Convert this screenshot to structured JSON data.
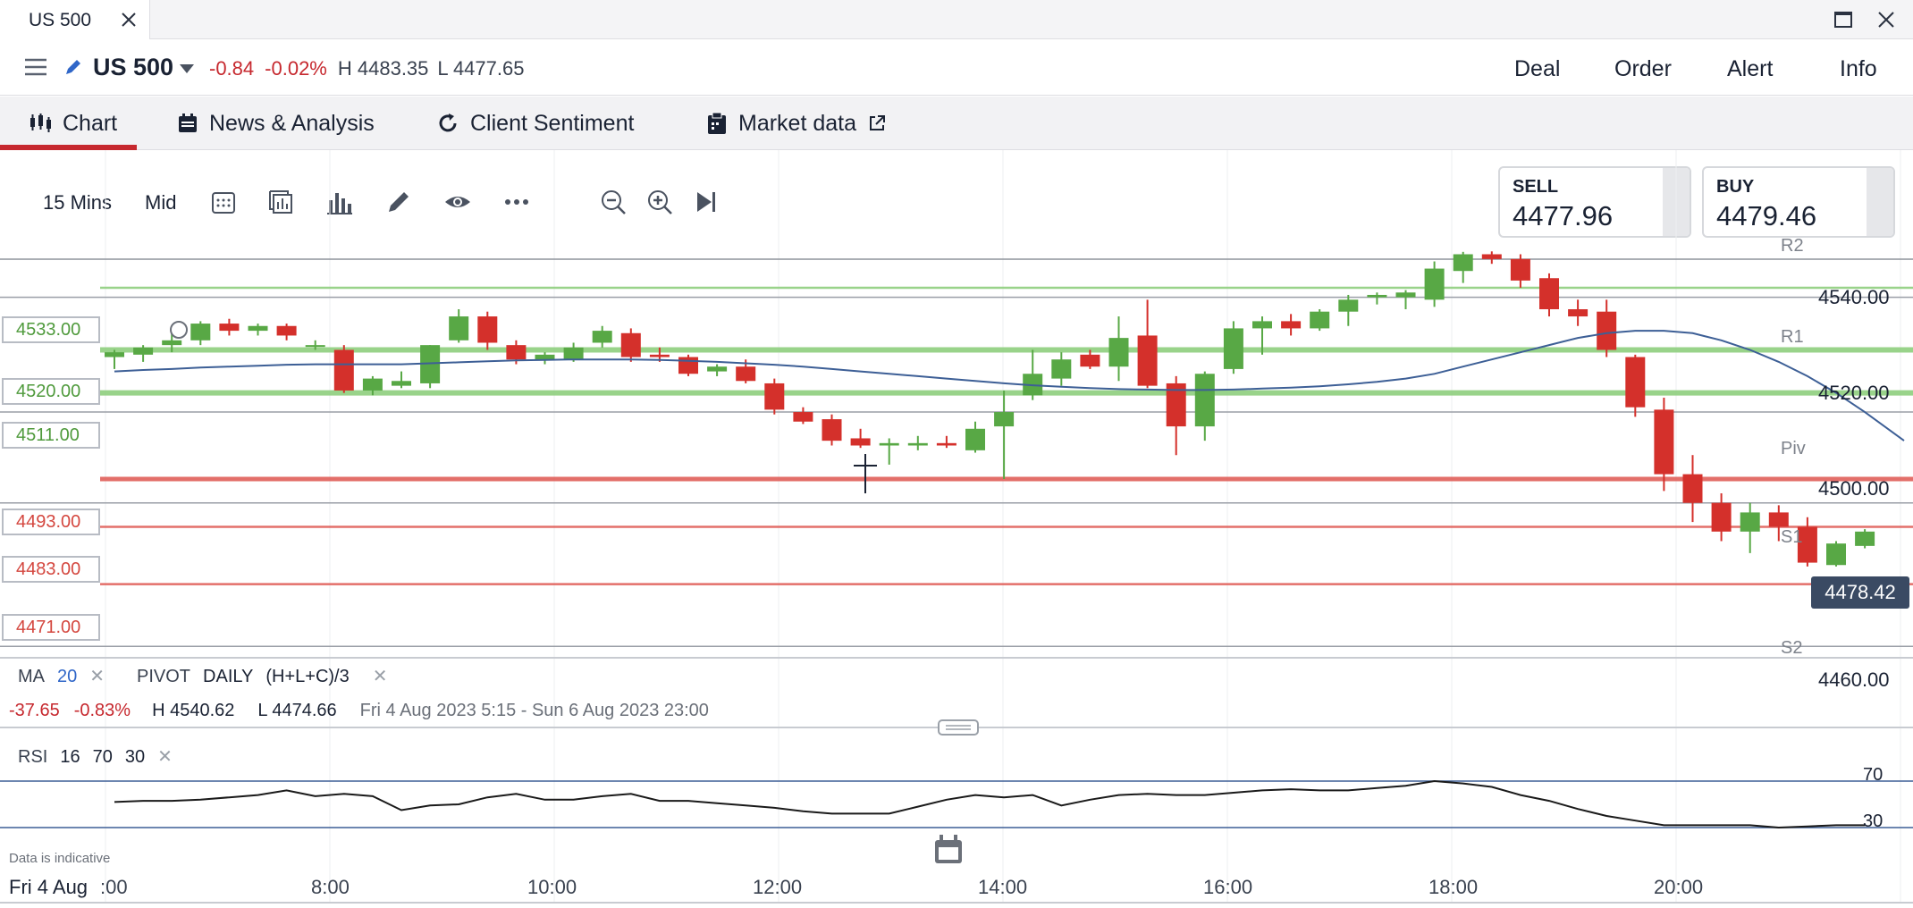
{
  "window": {
    "tab_title": "US 500"
  },
  "header": {
    "instrument": "US 500",
    "change": "-0.84",
    "change_pct": "-0.02%",
    "high": "H 4483.35",
    "low": "L 4477.65",
    "buttons": [
      "Deal",
      "Order",
      "Alert",
      "Info"
    ]
  },
  "tabs": [
    {
      "label": "Chart",
      "icon": "candles-icon",
      "active": true
    },
    {
      "label": "News & Analysis",
      "icon": "calendar-icon"
    },
    {
      "label": "Client Sentiment",
      "icon": "refresh-icon"
    },
    {
      "label": "Market data",
      "icon": "clipboard-icon"
    }
  ],
  "toolbar": {
    "interval": "15 Mins",
    "price_type": "Mid"
  },
  "ticket": {
    "sell_label": "SELL",
    "sell_price": "4477.96",
    "buy_label": "BUY",
    "buy_price": "4479.46"
  },
  "levels": {
    "l4533": "4533.00",
    "l4520": "4520.00",
    "l4511": "4511.00",
    "l4493": "4493.00",
    "l4483": "4483.00",
    "l4471": "4471.00"
  },
  "pivots": {
    "r2": "R2",
    "r1": "R1",
    "piv": "Piv",
    "s1": "S1",
    "s2": "S2"
  },
  "yaxis": {
    "y4540": "4540.00",
    "y4520": "4520.00",
    "y4500": "4500.00",
    "y4460": "4460.00"
  },
  "current_price": "4478.42",
  "indicators": {
    "ma_label": "MA",
    "ma_period": "20",
    "pivot_label": "PIVOT",
    "pivot_period": "DAILY",
    "pivot_formula": "(H+L+C)/3"
  },
  "stats": {
    "change": "-37.65",
    "change_pct": "-0.83%",
    "high": "H 4540.62",
    "low": "L 4474.66",
    "range": "Fri 4 Aug 2023 5:15 - Sun 6 Aug 2023 23:00"
  },
  "rsi": {
    "label": "RSI",
    "period": "16",
    "upper": "70",
    "lower": "30",
    "upper_tick": "70",
    "lower_tick": "30"
  },
  "footnote": "Data is indicative",
  "time_axis": {
    "date": "Fri 4 Aug",
    "t0": ":00",
    "t1": "8:00",
    "t2": "10:00",
    "t3": "12:00",
    "t4": "14:00",
    "t5": "16:00",
    "t6": "18:00",
    "t7": "20:00"
  },
  "colors": {
    "up": "#58a845",
    "down": "#d4302b",
    "accent": "#c6282e",
    "ma_line": "#3d5f96"
  },
  "chart_data": {
    "type": "candlestick",
    "ylim": [
      4456,
      4548
    ],
    "candles": [
      {
        "t": "6:45",
        "o": 4518.5,
        "h": 4520.0,
        "l": 4516.0,
        "c": 4519.5
      },
      {
        "t": "7:00",
        "o": 4519.0,
        "h": 4521.0,
        "l": 4517.5,
        "c": 4520.5
      },
      {
        "t": "7:15",
        "o": 4521.0,
        "h": 4524.0,
        "l": 4519.5,
        "c": 4522.0
      },
      {
        "t": "7:30",
        "o": 4522.0,
        "h": 4526.0,
        "l": 4521.0,
        "c": 4525.5
      },
      {
        "t": "7:45",
        "o": 4525.5,
        "h": 4526.5,
        "l": 4523.0,
        "c": 4524.0
      },
      {
        "t": "8:00",
        "o": 4524.0,
        "h": 4525.5,
        "l": 4523.0,
        "c": 4525.0
      },
      {
        "t": "8:15",
        "o": 4525.0,
        "h": 4525.5,
        "l": 4522.0,
        "c": 4523.0
      },
      {
        "t": "8:30",
        "o": 4521.0,
        "h": 4522.0,
        "l": 4520.0,
        "c": 4521.0
      },
      {
        "t": "8:45",
        "o": 4520.0,
        "h": 4521.0,
        "l": 4511.0,
        "c": 4511.5
      },
      {
        "t": "9:00",
        "o": 4511.5,
        "h": 4514.5,
        "l": 4510.5,
        "c": 4514.0
      },
      {
        "t": "9:15",
        "o": 4512.5,
        "h": 4515.5,
        "l": 4512.0,
        "c": 4513.5
      },
      {
        "t": "9:30",
        "o": 4513.0,
        "h": 4521.0,
        "l": 4512.0,
        "c": 4521.0
      },
      {
        "t": "9:45",
        "o": 4522.0,
        "h": 4528.5,
        "l": 4521.5,
        "c": 4527.0
      },
      {
        "t": "10:00",
        "o": 4527.0,
        "h": 4528.0,
        "l": 4520.0,
        "c": 4521.5
      },
      {
        "t": "10:15",
        "o": 4521.0,
        "h": 4522.0,
        "l": 4517.0,
        "c": 4518.0
      },
      {
        "t": "10:30",
        "o": 4518.0,
        "h": 4519.5,
        "l": 4517.0,
        "c": 4519.0
      },
      {
        "t": "10:45",
        "o": 4518.0,
        "h": 4521.5,
        "l": 4517.5,
        "c": 4520.5
      },
      {
        "t": "11:00",
        "o": 4521.5,
        "h": 4525.0,
        "l": 4520.5,
        "c": 4524.0
      },
      {
        "t": "11:15",
        "o": 4523.5,
        "h": 4524.5,
        "l": 4517.5,
        "c": 4518.5
      },
      {
        "t": "11:30",
        "o": 4519.0,
        "h": 4520.5,
        "l": 4517.5,
        "c": 4518.5
      },
      {
        "t": "11:45",
        "o": 4518.5,
        "h": 4519.0,
        "l": 4514.5,
        "c": 4515.0
      },
      {
        "t": "12:00",
        "o": 4515.5,
        "h": 4517.0,
        "l": 4514.5,
        "c": 4516.5
      },
      {
        "t": "12:15",
        "o": 4516.5,
        "h": 4518.0,
        "l": 4513.0,
        "c": 4513.5
      },
      {
        "t": "12:30",
        "o": 4513.0,
        "h": 4514.0,
        "l": 4506.5,
        "c": 4507.5
      },
      {
        "t": "12:45",
        "o": 4507.0,
        "h": 4508.0,
        "l": 4504.5,
        "c": 4505.0
      },
      {
        "t": "13:00",
        "o": 4505.5,
        "h": 4506.5,
        "l": 4500.0,
        "c": 4501.0
      },
      {
        "t": "13:15",
        "o": 4501.5,
        "h": 4503.5,
        "l": 4499.5,
        "c": 4500.0
      },
      {
        "t": "13:30",
        "o": 4500.0,
        "h": 4501.5,
        "l": 4496.0,
        "c": 4500.5
      },
      {
        "t": "13:45",
        "o": 4500.0,
        "h": 4502.0,
        "l": 4499.0,
        "c": 4500.5
      },
      {
        "t": "14:00",
        "o": 4500.5,
        "h": 4502.0,
        "l": 4499.5,
        "c": 4500.0
      },
      {
        "t": "14:15",
        "o": 4499.0,
        "h": 4505.0,
        "l": 4498.5,
        "c": 4503.5
      },
      {
        "t": "14:30",
        "o": 4504.0,
        "h": 4511.5,
        "l": 4493.0,
        "c": 4507.0
      },
      {
        "t": "14:45",
        "o": 4510.5,
        "h": 4520.0,
        "l": 4509.5,
        "c": 4515.0
      },
      {
        "t": "15:00",
        "o": 4514.0,
        "h": 4519.5,
        "l": 4512.5,
        "c": 4518.0
      },
      {
        "t": "15:15",
        "o": 4519.0,
        "h": 4520.0,
        "l": 4516.0,
        "c": 4516.5
      },
      {
        "t": "15:30",
        "o": 4516.5,
        "h": 4527.0,
        "l": 4513.5,
        "c": 4522.5
      },
      {
        "t": "15:45",
        "o": 4523.0,
        "h": 4530.5,
        "l": 4512.0,
        "c": 4512.5
      },
      {
        "t": "16:00",
        "o": 4513.0,
        "h": 4514.5,
        "l": 4498.0,
        "c": 4504.0
      },
      {
        "t": "16:15",
        "o": 4504.0,
        "h": 4515.5,
        "l": 4501.0,
        "c": 4515.0
      },
      {
        "t": "16:30",
        "o": 4516.0,
        "h": 4526.0,
        "l": 4515.0,
        "c": 4524.5
      },
      {
        "t": "16:45",
        "o": 4524.5,
        "h": 4527.0,
        "l": 4519.0,
        "c": 4526.0
      },
      {
        "t": "17:00",
        "o": 4526.0,
        "h": 4527.5,
        "l": 4523.0,
        "c": 4524.5
      },
      {
        "t": "17:15",
        "o": 4524.5,
        "h": 4528.5,
        "l": 4524.0,
        "c": 4528.0
      },
      {
        "t": "17:30",
        "o": 4528.0,
        "h": 4531.5,
        "l": 4525.0,
        "c": 4530.5
      },
      {
        "t": "17:45",
        "o": 4531.0,
        "h": 4532.0,
        "l": 4529.5,
        "c": 4531.5
      },
      {
        "t": "18:00",
        "o": 4531.0,
        "h": 4532.5,
        "l": 4528.5,
        "c": 4532.0
      },
      {
        "t": "18:15",
        "o": 4530.5,
        "h": 4538.5,
        "l": 4529.0,
        "c": 4537.0
      },
      {
        "t": "18:30",
        "o": 4536.5,
        "h": 4540.5,
        "l": 4534.0,
        "c": 4540.0
      },
      {
        "t": "18:45",
        "o": 4540.0,
        "h": 4540.6,
        "l": 4538.0,
        "c": 4539.0
      },
      {
        "t": "19:00",
        "o": 4539.0,
        "h": 4540.0,
        "l": 4533.0,
        "c": 4534.5
      },
      {
        "t": "19:15",
        "o": 4535.0,
        "h": 4536.0,
        "l": 4527.0,
        "c": 4528.5
      },
      {
        "t": "19:30",
        "o": 4528.5,
        "h": 4530.5,
        "l": 4525.0,
        "c": 4527.0
      },
      {
        "t": "19:45",
        "o": 4528.0,
        "h": 4530.5,
        "l": 4518.5,
        "c": 4520.0
      },
      {
        "t": "20:00",
        "o": 4518.5,
        "h": 4519.0,
        "l": 4506.0,
        "c": 4508.0
      },
      {
        "t": "20:15",
        "o": 4507.5,
        "h": 4510.0,
        "l": 4490.5,
        "c": 4494.0
      },
      {
        "t": "20:30",
        "o": 4494.0,
        "h": 4498.0,
        "l": 4484.0,
        "c": 4488.0
      },
      {
        "t": "20:45",
        "o": 4488.0,
        "h": 4490.0,
        "l": 4480.0,
        "c": 4482.0
      },
      {
        "t": "21:00",
        "o": 4482.0,
        "h": 4488.0,
        "l": 4477.5,
        "c": 4486.0
      },
      {
        "t": "21:15",
        "o": 4486.0,
        "h": 4487.5,
        "l": 4480.0,
        "c": 4483.0
      },
      {
        "t": "21:30",
        "o": 4483.0,
        "h": 4485.0,
        "l": 4474.7,
        "c": 4475.5
      },
      {
        "t": "21:45",
        "o": 4475.0,
        "h": 4480.0,
        "l": 4474.7,
        "c": 4479.5
      },
      {
        "t": "22:00",
        "o": 4479.0,
        "h": 4482.5,
        "l": 4478.5,
        "c": 4482.0
      }
    ],
    "ma20": [
      4515.5,
      4515.8,
      4516.0,
      4516.3,
      4516.5,
      4516.7,
      4516.9,
      4517.0,
      4517.0,
      4517.0,
      4517.0,
      4517.2,
      4517.4,
      4517.6,
      4517.8,
      4517.9,
      4518.0,
      4518.0,
      4518.0,
      4517.9,
      4517.7,
      4517.5,
      4517.2,
      4516.9,
      4516.5,
      4516.0,
      4515.5,
      4515.0,
      4514.5,
      4514.0,
      4513.5,
      4513.0,
      4512.6,
      4512.3,
      4512.0,
      4511.8,
      4511.7,
      4511.6,
      4511.6,
      4511.7,
      4511.9,
      4512.1,
      4512.4,
      4512.8,
      4513.3,
      4514.0,
      4515.0,
      4516.5,
      4518.0,
      4519.5,
      4521.0,
      4522.5,
      4523.5,
      4524.0,
      4524.0,
      4523.5,
      4522.0,
      4520.0,
      4517.5,
      4514.5,
      4511.0,
      4507.0
    ],
    "rsi": [
      52,
      53,
      53,
      54,
      56,
      58,
      62,
      57,
      59,
      57,
      45,
      49,
      50,
      56,
      59,
      54,
      54,
      57,
      59,
      53,
      53,
      51,
      49,
      47,
      44,
      42,
      42,
      42,
      48,
      54,
      58,
      56,
      58,
      49,
      54,
      58,
      59,
      58,
      58,
      60,
      62,
      63,
      62,
      62,
      64,
      66,
      70,
      68,
      65,
      58,
      53,
      46,
      40,
      36,
      32,
      32,
      32,
      32,
      30,
      31,
      32,
      32
    ],
    "horizontal_levels": [
      4533,
      4520,
      4511,
      4493,
      4483,
      4471
    ],
    "pivot_levels": {
      "R2": 4549.5,
      "R1": 4531.0,
      "Piv": 4507.0,
      "S1": 4488.0,
      "S2": 4458.0
    }
  }
}
